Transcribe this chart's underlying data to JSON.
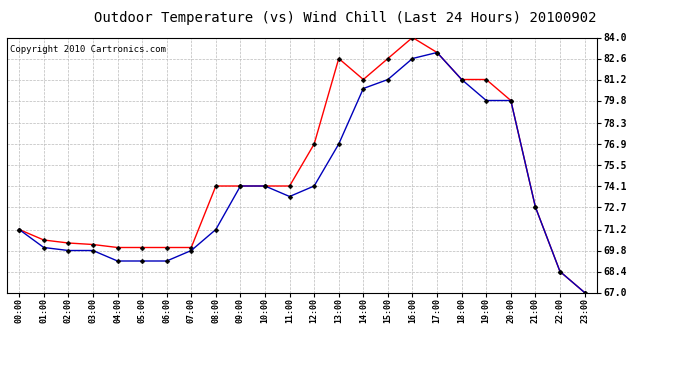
{
  "title": "Outdoor Temperature (vs) Wind Chill (Last 24 Hours) 20100902",
  "copyright": "Copyright 2010 Cartronics.com",
  "x_labels": [
    "00:00",
    "01:00",
    "02:00",
    "03:00",
    "04:00",
    "05:00",
    "06:00",
    "07:00",
    "08:00",
    "09:00",
    "10:00",
    "11:00",
    "12:00",
    "13:00",
    "14:00",
    "15:00",
    "16:00",
    "17:00",
    "18:00",
    "19:00",
    "20:00",
    "21:00",
    "22:00",
    "23:00"
  ],
  "temp_red": [
    71.2,
    70.5,
    70.3,
    70.2,
    70.0,
    70.0,
    70.0,
    70.0,
    74.1,
    74.1,
    74.1,
    74.1,
    76.9,
    82.6,
    81.2,
    82.6,
    84.0,
    83.0,
    81.2,
    81.2,
    79.8,
    72.7,
    68.4,
    67.0
  ],
  "temp_blue": [
    71.2,
    70.0,
    69.8,
    69.8,
    69.1,
    69.1,
    69.1,
    69.8,
    71.2,
    74.1,
    74.1,
    73.4,
    74.1,
    76.9,
    80.6,
    81.2,
    82.6,
    83.0,
    81.2,
    79.8,
    79.8,
    72.7,
    68.4,
    67.0
  ],
  "y_ticks": [
    67.0,
    68.4,
    69.8,
    71.2,
    72.7,
    74.1,
    75.5,
    76.9,
    78.3,
    79.8,
    81.2,
    82.6,
    84.0
  ],
  "y_min": 67.0,
  "y_max": 84.0,
  "red_color": "#ff0000",
  "blue_color": "#0000bb",
  "bg_color": "#ffffff",
  "plot_bg_color": "#ffffff",
  "grid_color": "#bbbbbb",
  "title_fontsize": 10,
  "copyright_fontsize": 6.5,
  "tick_fontsize": 7,
  "xtick_fontsize": 6
}
